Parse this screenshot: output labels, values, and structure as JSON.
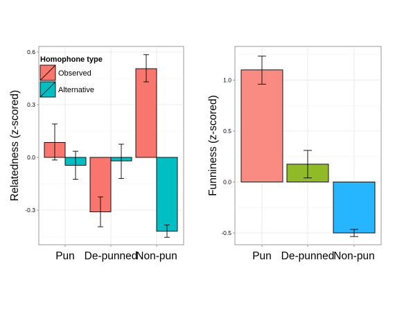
{
  "chart_data": [
    {
      "type": "bar",
      "ylabel": "Relatedness (z-scored)",
      "categories": [
        "Pun",
        "De-punned",
        "Non-pun"
      ],
      "yticks": [
        "0.6",
        "0.3",
        "0.0",
        "-0.3"
      ],
      "ylim": [
        -0.5,
        0.63
      ],
      "legend": {
        "title": "Homophone type",
        "position": "top-left"
      },
      "series": [
        {
          "name": "Observed",
          "color": "#F8766D",
          "values": [
            0.085,
            -0.31,
            0.505
          ],
          "err_low": [
            -0.015,
            -0.395,
            0.43
          ],
          "err_high": [
            0.19,
            -0.225,
            0.585
          ]
        },
        {
          "name": "Alternative",
          "color": "#00BFC4",
          "values": [
            -0.045,
            -0.02,
            -0.42
          ],
          "err_low": [
            -0.125,
            -0.12,
            -0.455
          ],
          "err_high": [
            0.035,
            0.075,
            -0.385
          ]
        }
      ],
      "grid": true
    },
    {
      "type": "bar",
      "ylabel": "Funniness (z-scored)",
      "categories": [
        "Pun",
        "De-punned",
        "Non-pun"
      ],
      "yticks": [
        "1.0",
        "0.5",
        "0.0",
        "-0.5"
      ],
      "ylim": [
        -0.6,
        1.33
      ],
      "colors": [
        "#F8766D",
        "#7CAE00",
        "#00A9FF"
      ],
      "values": [
        1.1,
        0.175,
        -0.5
      ],
      "err_low": [
        0.96,
        0.04,
        -0.535
      ],
      "err_high": [
        1.235,
        0.31,
        -0.465
      ],
      "grid": true
    }
  ]
}
